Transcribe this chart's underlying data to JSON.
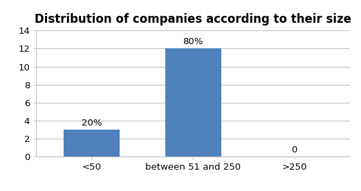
{
  "title": "Distribution of companies according to their size",
  "categories": [
    "<50",
    "between 51 and 250",
    ">250"
  ],
  "values": [
    3,
    12,
    0
  ],
  "labels": [
    "20%",
    "80%",
    "0"
  ],
  "bar_color": "#4F81BD",
  "ylim": [
    0,
    14
  ],
  "yticks": [
    0,
    2,
    4,
    6,
    8,
    10,
    12,
    14
  ],
  "title_fontsize": 12,
  "label_fontsize": 9.5,
  "tick_fontsize": 9.5,
  "background_color": "#ffffff",
  "grid_color": "#c0c0c0",
  "bar_width": 0.55
}
